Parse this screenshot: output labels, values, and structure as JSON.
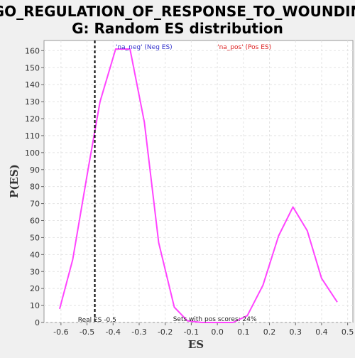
{
  "chart_data": {
    "type": "line",
    "title_line1": "GO_REGULATION_OF_RESPONSE_TO_WOUNDIN",
    "title_line2": "G: Random ES distribution",
    "xlabel": "ES",
    "ylabel": "P(ES)",
    "xlim": [
      -0.665,
      0.52
    ],
    "ylim": [
      0,
      166
    ],
    "x_ticks": [
      -0.6,
      -0.5,
      -0.4,
      -0.3,
      -0.2,
      -0.1,
      0.0,
      0.1,
      0.2,
      0.3,
      0.4,
      0.5
    ],
    "x_tick_labels": [
      "-0.6",
      "-0.5",
      "-0.4",
      "-0.3",
      "-0.2",
      "-0.1",
      "0.0",
      "0.1",
      "0.2",
      "0.3",
      "0.4",
      "0.5"
    ],
    "y_ticks": [
      0,
      10,
      20,
      30,
      40,
      50,
      60,
      70,
      80,
      90,
      100,
      110,
      120,
      130,
      140,
      150,
      160
    ],
    "y_tick_labels": [
      "0",
      "10",
      "20",
      "30",
      "40",
      "50",
      "60",
      "70",
      "80",
      "90",
      "100",
      "110",
      "120",
      "130",
      "140",
      "150",
      "160"
    ],
    "grid": true,
    "legend": [
      {
        "label": "'na_neg' (Neg ES)",
        "color": "#3333cc"
      },
      {
        "label": "'na_pos' (Pos ES)",
        "color": "#dd2222"
      }
    ],
    "series": [
      {
        "color": "#ff44ff",
        "x": [
          -0.605,
          -0.555,
          -0.495,
          -0.45,
          -0.39,
          -0.35,
          -0.335,
          -0.28,
          -0.225,
          -0.165,
          -0.115,
          -0.06,
          0.0,
          0.06,
          0.115,
          0.175,
          0.235,
          0.29,
          0.345,
          0.4,
          0.46
        ],
        "y": [
          8,
          37,
          91,
          130,
          161,
          161,
          161,
          118,
          47,
          9,
          1,
          0,
          0,
          0,
          4,
          22,
          51,
          68,
          54,
          26,
          12
        ]
      }
    ],
    "real_es": {
      "value": -0.47,
      "label": "Real ES -0.5"
    },
    "annotation": "Sets with pos scores: 24%"
  }
}
